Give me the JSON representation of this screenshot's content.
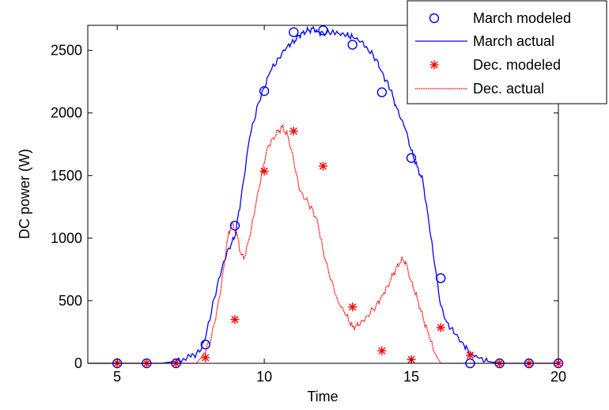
{
  "chart_data": {
    "type": "line",
    "xlabel": "Time",
    "ylabel": "DC power (W)",
    "xlim": [
      4,
      20
    ],
    "ylim": [
      0,
      2700
    ],
    "xticks": [
      5,
      10,
      15,
      20
    ],
    "yticks": [
      0,
      500,
      1000,
      1500,
      2000,
      2500
    ],
    "legend_position": "top-right",
    "series": [
      {
        "name": "March modeled",
        "kind": "markers",
        "marker": "circle",
        "color": "#0000ff",
        "x": [
          5,
          6,
          7,
          8,
          9,
          10,
          11,
          12,
          13,
          14,
          15,
          16,
          17,
          18,
          19,
          20
        ],
        "y": [
          0,
          0,
          0,
          150,
          1100,
          2175,
          2645,
          2660,
          2545,
          2165,
          1640,
          680,
          0,
          0,
          0,
          0
        ]
      },
      {
        "name": "March actual",
        "kind": "line",
        "style": "solid",
        "color": "#0000ff",
        "x": [
          4,
          6.5,
          7.0,
          7.5,
          7.8,
          8.0,
          8.3,
          8.6,
          8.8,
          9.0,
          9.2,
          9.5,
          9.8,
          10.0,
          10.2,
          10.5,
          10.8,
          11.0,
          11.1,
          11.2,
          11.3,
          11.5,
          11.7,
          11.8,
          12.0,
          12.3,
          12.5,
          12.8,
          13.0,
          13.3,
          13.5,
          13.8,
          14.0,
          14.3,
          14.5,
          14.8,
          15.0,
          15.2,
          15.4,
          15.5,
          15.6,
          15.8,
          16.0,
          16.2,
          16.5,
          16.8,
          17.0,
          17.3,
          17.6,
          18.0,
          20
        ],
        "y": [
          0,
          0,
          15,
          50,
          90,
          200,
          520,
          800,
          920,
          1010,
          1300,
          1800,
          2080,
          2200,
          2330,
          2440,
          2540,
          2570,
          2600,
          2620,
          2640,
          2660,
          2670,
          2650,
          2640,
          2650,
          2640,
          2620,
          2610,
          2570,
          2520,
          2430,
          2330,
          2180,
          2040,
          1870,
          1700,
          1570,
          1450,
          1280,
          1120,
          780,
          460,
          330,
          230,
          140,
          80,
          40,
          15,
          0,
          0
        ]
      },
      {
        "name": "Dec. modeled",
        "kind": "markers",
        "marker": "asterisk",
        "color": "#ff0000",
        "x": [
          5,
          6,
          7,
          8,
          9,
          10,
          11,
          12,
          13,
          14,
          15,
          16,
          17,
          18,
          19,
          20
        ],
        "y": [
          0,
          0,
          0,
          45,
          350,
          1535,
          1855,
          1575,
          450,
          100,
          30,
          285,
          65,
          0,
          0,
          0
        ]
      },
      {
        "name": "Dec. actual",
        "kind": "line",
        "style": "dotted",
        "color": "#ff0000",
        "x": [
          4,
          7.7,
          7.9,
          8.2,
          8.5,
          8.7,
          8.8,
          8.9,
          9.0,
          9.1,
          9.2,
          9.3,
          9.5,
          9.7,
          9.9,
          10.1,
          10.3,
          10.5,
          10.6,
          10.8,
          11.0,
          11.2,
          11.5,
          11.8,
          12.0,
          12.2,
          12.5,
          12.8,
          13.0,
          13.2,
          13.5,
          13.8,
          14.0,
          14.2,
          14.4,
          14.6,
          14.7,
          14.8,
          15.0,
          15.2,
          15.4,
          15.6,
          15.8,
          16.0,
          20
        ],
        "y": [
          0,
          0,
          60,
          200,
          550,
          900,
          1050,
          1120,
          1060,
          1000,
          880,
          830,
          1000,
          1250,
          1500,
          1720,
          1800,
          1860,
          1890,
          1820,
          1620,
          1380,
          1280,
          1150,
          900,
          720,
          500,
          380,
          290,
          300,
          380,
          460,
          540,
          620,
          720,
          800,
          830,
          810,
          650,
          520,
          360,
          220,
          80,
          0,
          0
        ]
      }
    ]
  }
}
